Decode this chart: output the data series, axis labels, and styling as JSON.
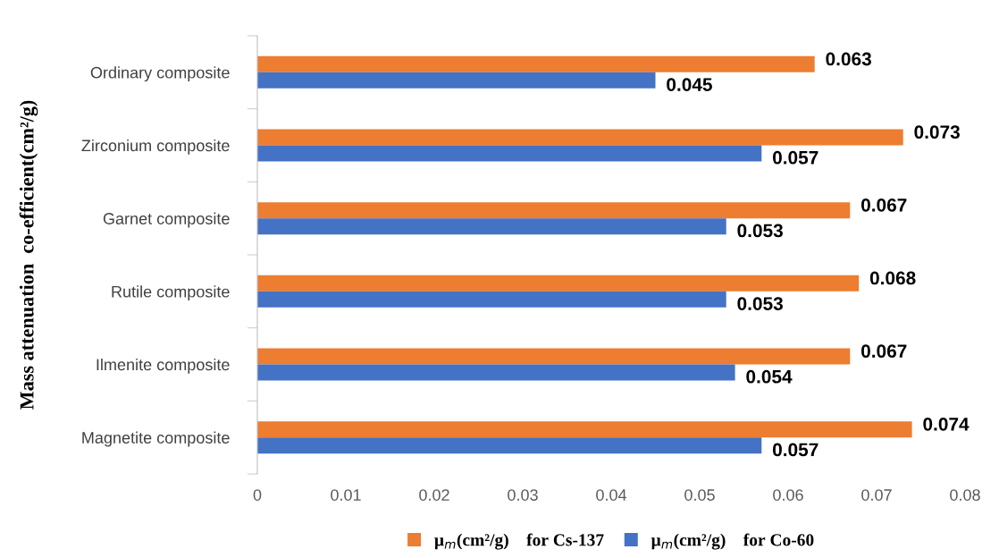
{
  "chart_data": {
    "type": "bar",
    "orientation": "horizontal",
    "ylabel": "Mass attenuation  co-efficient(cm²/g)",
    "categories": [
      "Ordinary composite",
      "Zirconium composite",
      "Garnet composite",
      "Rutile composite",
      "Ilmenite composite",
      "Magnetite composite"
    ],
    "series": [
      {
        "name": "μ$_{m}$(cm²/g)    for Cs-137",
        "color": "#ed7d31",
        "values": [
          0.063,
          0.073,
          0.067,
          0.068,
          0.067,
          0.074
        ]
      },
      {
        "name": "μ$_{m}$(cm²/g)    for Co-60",
        "color": "#4472c4",
        "values": [
          0.045,
          0.057,
          0.053,
          0.053,
          0.054,
          0.057
        ]
      }
    ],
    "xlim": [
      0,
      0.08
    ],
    "xticks": [
      0,
      0.01,
      0.02,
      0.03,
      0.04,
      0.05,
      0.06,
      0.07,
      0.08
    ],
    "data_labels": true,
    "legend": "bottom",
    "grid": false
  }
}
